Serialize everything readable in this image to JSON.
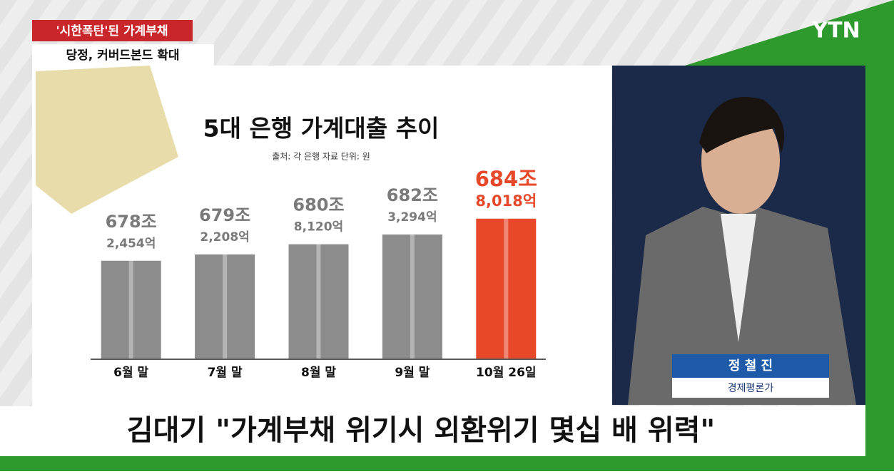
{
  "header": {
    "tag": "'시한폭탄'된 가계부채",
    "subtag": "당정, 커버드본드 확대"
  },
  "logo": "YTN",
  "chart_data": {
    "type": "bar",
    "title": "5대 은행 가계대출 추이",
    "subtitle": "출처: 각 은행 자료   단위: 원",
    "categories": [
      "6월 말",
      "7월 말",
      "8월 말",
      "9월 말",
      "10월 26일"
    ],
    "values": [
      6782454,
      6792208,
      6808120,
      6823294,
      6848018
    ],
    "value_labels": [
      [
        "678조",
        "2,454억"
      ],
      [
        "679조",
        "2,208억"
      ],
      [
        "680조",
        "8,120억"
      ],
      [
        "682조",
        "3,294억"
      ],
      [
        "684조",
        "8,018억"
      ]
    ],
    "colors": [
      "#8c8c8c",
      "#8c8c8c",
      "#8c8c8c",
      "#8c8c8c",
      "#e8482a"
    ],
    "ylim": [
      6630000,
      6870000
    ]
  },
  "speaker": {
    "name": "정 철 진",
    "role": "경제평론가"
  },
  "caption": "김대기 \"가계부채 위기시 외환위기 몇십 배 위력\""
}
